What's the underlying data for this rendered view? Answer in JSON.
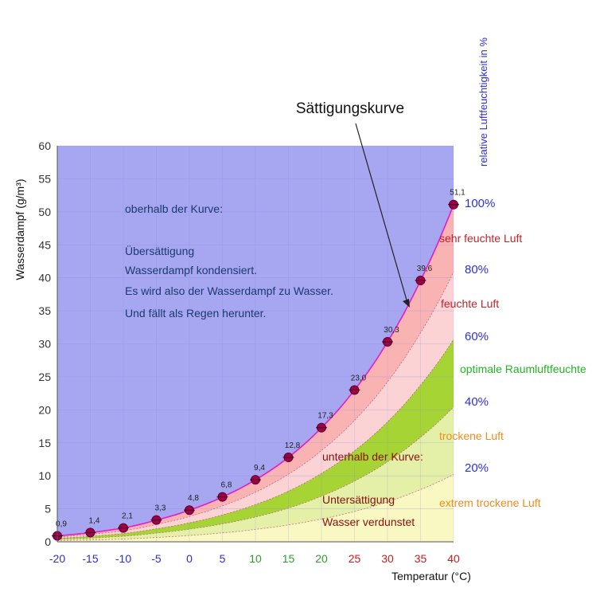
{
  "chart_data": {
    "type": "area",
    "ylabel": "Wasserdampf (g/m³)",
    "xlabel": "Temperatur (°C)",
    "right_axis_title": "relative Luftfeuchtigkeit in %",
    "annotation_curve": "Sättigungskurve",
    "xlim": [
      -20,
      40
    ],
    "ylim": [
      0,
      60
    ],
    "x_ticks": [
      -20,
      -15,
      -10,
      -5,
      0,
      5,
      10,
      15,
      20,
      25,
      30,
      35,
      40
    ],
    "x_tick_labels": [
      "-20",
      "-15",
      "-10",
      "-5",
      "0",
      "5",
      "10",
      "15",
      "20",
      "25",
      "30",
      "35",
      "40"
    ],
    "y_ticks": [
      0,
      5,
      10,
      15,
      20,
      25,
      30,
      35,
      40,
      45,
      50,
      55,
      60
    ],
    "y_tick_labels": [
      "0",
      "5",
      "10",
      "15",
      "20",
      "25",
      "30",
      "35",
      "40",
      "45",
      "50",
      "55",
      "60"
    ],
    "saturation": {
      "x": [
        -20,
        -15,
        -10,
        -5,
        0,
        5,
        10,
        15,
        20,
        25,
        30,
        35,
        40
      ],
      "y": [
        0.9,
        1.4,
        2.1,
        3.3,
        4.8,
        6.8,
        9.4,
        12.8,
        17.3,
        23.0,
        30.3,
        39.6,
        51.1
      ],
      "labels": [
        "0,9",
        "1,4",
        "2,1",
        "3,3",
        "4,8",
        "6,8",
        "9,4",
        "12,8",
        "17,3",
        "23,0",
        "30,3",
        "39,6",
        "51,1"
      ]
    },
    "humidity_percent_labels": [
      "100%",
      "80%",
      "60%",
      "40%",
      "20%"
    ],
    "zones": [
      {
        "label": "sehr feuchte Luft",
        "range": [
          80,
          100
        ],
        "color": "#f9b3b3",
        "label_color": "#c0232a"
      },
      {
        "label": "feuchte Luft",
        "range": [
          60,
          80
        ],
        "color": "#fbd3d5",
        "label_color": "#c0232a"
      },
      {
        "label": "optimale Raumluftfeuchte",
        "range": [
          40,
          60
        ],
        "color": "#a5d434",
        "label_color": "#22b522"
      },
      {
        "label": "trockene Luft",
        "range": [
          20,
          40
        ],
        "color": "#e4f0a8",
        "label_color": "#f08c1e"
      },
      {
        "label": "extrem trockene Luft",
        "range": [
          0,
          20
        ],
        "color": "#f9f7c2",
        "label_color": "#f08c1e"
      }
    ],
    "colors": {
      "above": "#a6a6f1",
      "curve": "#e11ec8",
      "point": "#a0004a",
      "percent": "#2d2de6",
      "tick_blue": "#2d2dd6",
      "tick_green": "#2e9e2e",
      "tick_red": "#c21e1e"
    },
    "text_above": [
      "oberhalb der Kurve:",
      "",
      "Übersättigung",
      "Wasserdampf kondensiert.",
      "Es wird also der Wasserdampf zu Wasser.",
      "Und fällt als Regen herunter."
    ],
    "text_below": [
      "unterhalb der Kurve:",
      "",
      "Untersättigung",
      "Wasser verdunstet"
    ]
  }
}
